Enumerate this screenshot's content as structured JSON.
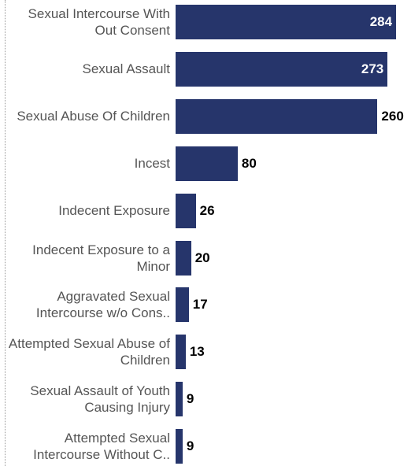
{
  "chart_data": {
    "type": "bar",
    "orientation": "horizontal",
    "categories": [
      "Sexual Intercourse With Out Consent",
      "Sexual Assault",
      "Sexual Abuse Of Children",
      "Incest",
      "Indecent Exposure",
      "Indecent Exposure to a Minor",
      "Aggravated Sexual Intercourse w/o Cons..",
      "Attempted Sexual Abuse of Children",
      "Sexual Assault of Youth Causing Injury",
      "Attempted Sexual Intercourse Without C.."
    ],
    "values": [
      284,
      273,
      260,
      80,
      26,
      20,
      17,
      13,
      9,
      9
    ],
    "color": "#26356b",
    "xlim": [
      0,
      290
    ]
  }
}
